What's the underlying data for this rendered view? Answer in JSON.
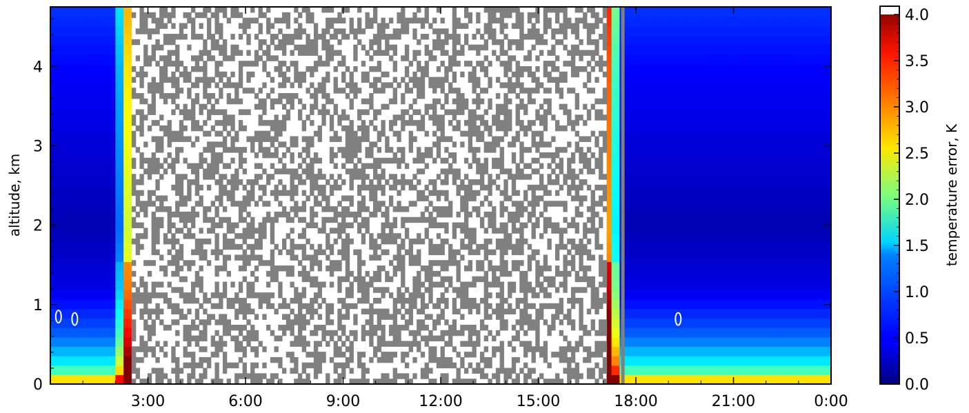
{
  "chart_data": {
    "type": "heatmap",
    "title": "",
    "xlabel": "",
    "ylabel": "altitude, km",
    "colorbar_label": "temperature error, K",
    "colormap": "jet",
    "x_range_hours": [
      0,
      24
    ],
    "xlim": [
      "0:00",
      "0:00"
    ],
    "ylim": [
      0,
      4.75
    ],
    "x_ticks": [
      {
        "value": 3,
        "label": "3:00"
      },
      {
        "value": 6,
        "label": "6:00"
      },
      {
        "value": 9,
        "label": "9:00"
      },
      {
        "value": 12,
        "label": "12:00"
      },
      {
        "value": 15,
        "label": "15:00"
      },
      {
        "value": 18,
        "label": "18:00"
      },
      {
        "value": 21,
        "label": "21:00"
      },
      {
        "value": 24,
        "label": "0:00"
      }
    ],
    "y_ticks": [
      {
        "value": 0,
        "label": "0"
      },
      {
        "value": 1,
        "label": "1"
      },
      {
        "value": 2,
        "label": "2"
      },
      {
        "value": 3,
        "label": "3"
      },
      {
        "value": 4,
        "label": "4"
      }
    ],
    "colorbar_range": [
      0,
      4
    ],
    "colorbar_ticks": [
      {
        "value": 0.0,
        "label": "0.0"
      },
      {
        "value": 0.5,
        "label": "0.5"
      },
      {
        "value": 1.0,
        "label": "1.0"
      },
      {
        "value": 1.5,
        "label": "1.5"
      },
      {
        "value": 2.0,
        "label": "2.0"
      },
      {
        "value": 2.5,
        "label": "2.5"
      },
      {
        "value": 3.0,
        "label": "3.0"
      },
      {
        "value": 3.5,
        "label": "3.5"
      },
      {
        "value": 4.0,
        "label": "4.0"
      }
    ],
    "daytime_masked_period_hours": [
      2.5,
      17.1
    ],
    "vertical_marker_hour": 17.6,
    "night_error_profile_K": [
      {
        "altitude_km": 0.0,
        "error_K": 3.5
      },
      {
        "altitude_km": 0.1,
        "error_K": 2.0
      },
      {
        "altitude_km": 0.3,
        "error_K": 1.4
      },
      {
        "altitude_km": 0.6,
        "error_K": 0.9
      },
      {
        "altitude_km": 1.2,
        "error_K": 0.4
      },
      {
        "altitude_km": 2.0,
        "error_K": 0.2
      },
      {
        "altitude_km": 3.0,
        "error_K": 0.35
      },
      {
        "altitude_km": 4.0,
        "error_K": 0.5
      },
      {
        "altitude_km": 4.75,
        "error_K": 0.7
      }
    ],
    "contour_markers": [
      {
        "hour": 0.25,
        "altitude_km": 0.85
      },
      {
        "hour": 0.75,
        "altitude_km": 0.82
      },
      {
        "hour": 19.3,
        "altitude_km": 0.82
      }
    ]
  }
}
